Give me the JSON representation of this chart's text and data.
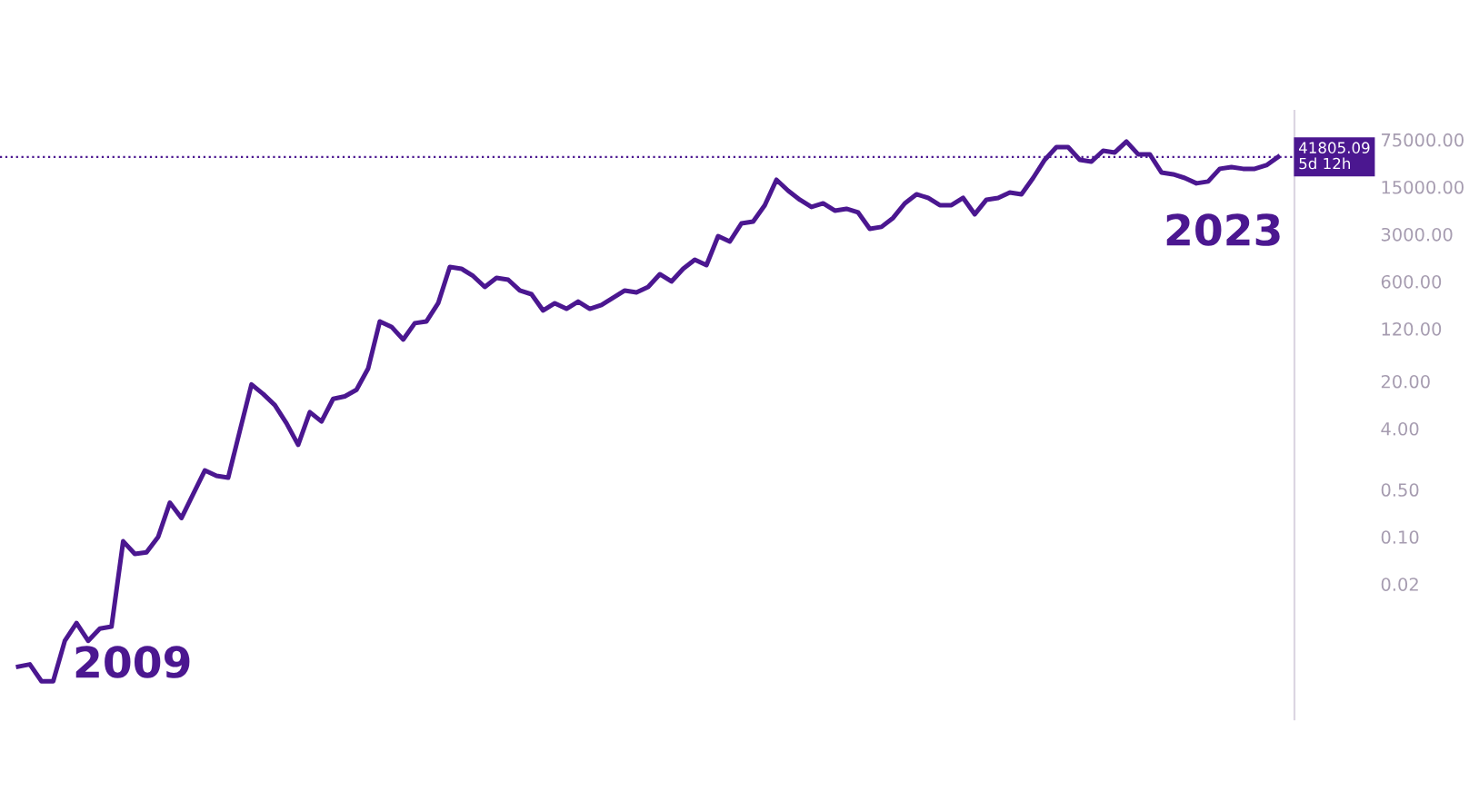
{
  "chart_data": {
    "type": "line",
    "categories": [
      null,
      null,
      null,
      null,
      null,
      null,
      null,
      null,
      null,
      null,
      null,
      null,
      null,
      null,
      null,
      null,
      null,
      null,
      null,
      null,
      null,
      null,
      null,
      null,
      null,
      null,
      null,
      null,
      null,
      null,
      null,
      null,
      null,
      null,
      null,
      null,
      null,
      null,
      null,
      null,
      null,
      null,
      null,
      null,
      null,
      null,
      null,
      null,
      null,
      null,
      null,
      null,
      null,
      null,
      null,
      null,
      null,
      null,
      null,
      null,
      null,
      null,
      null,
      null,
      null,
      null,
      null,
      null,
      null,
      null,
      null,
      null,
      null,
      null,
      null,
      null,
      null,
      null,
      null,
      null,
      null,
      null,
      null,
      null,
      null,
      null,
      null,
      null,
      null,
      null,
      null,
      null,
      null,
      null,
      null,
      null,
      null,
      null,
      null,
      null,
      null,
      null,
      null,
      null,
      null,
      null,
      null,
      null,
      null
    ],
    "series": [
      {
        "color": "#4b1790",
        "values": [
          0.0012,
          0.0013,
          0.00073,
          0.00073,
          0.0029,
          0.0053,
          0.0029,
          0.0044,
          0.0047,
          0.086,
          0.056,
          0.059,
          0.1,
          0.32,
          0.19,
          0.43,
          0.96,
          0.8,
          0.75,
          3.7,
          18,
          13,
          8.9,
          4.8,
          2.3,
          7.0,
          5.1,
          11,
          12,
          15,
          31,
          154,
          128,
          83,
          145,
          154,
          286,
          984,
          925,
          723,
          498,
          679,
          638,
          441,
          389,
          223,
          286,
          237,
          303,
          237,
          269,
          344,
          441,
          414,
          498,
          769,
          600,
          925,
          1262,
          1047,
          2818,
          2339,
          4345,
          4624,
          8070,
          19190,
          13240,
          9730,
          7590,
          8590,
          6700,
          7130,
          6310,
          3610,
          3850,
          5240,
          8590,
          11700,
          10350,
          8070,
          8070,
          10350,
          5930,
          9730,
          10350,
          12450,
          11700,
          20400,
          37900,
          58500,
          58500,
          37900,
          35600,
          51600,
          48600,
          70500,
          45700,
          45700,
          24600,
          23100,
          20400,
          17000,
          18100,
          27900,
          29600,
          27900,
          27900,
          31500,
          41805.09
        ]
      }
    ],
    "log": "y",
    "ylim": [
      0.0002,
      200000
    ],
    "yticks": [
      {
        "value": 0.02,
        "label": "0.02"
      },
      {
        "value": 0.1,
        "label": "0.10"
      },
      {
        "value": 0.5,
        "label": "0.50"
      },
      {
        "value": 4,
        "label": "4.00"
      },
      {
        "value": 20,
        "label": "20.00"
      },
      {
        "value": 120,
        "label": "120.00"
      },
      {
        "value": 600,
        "label": "600.00"
      },
      {
        "value": 3000,
        "label": "3000.00"
      },
      {
        "value": 15000,
        "label": "15000.00"
      },
      {
        "value": 75000,
        "label": "75000.00"
      }
    ],
    "tick_labels": "y",
    "grid": false,
    "marker": "none",
    "line_style": "solid",
    "ref_lines": [
      {
        "axis": "y",
        "value": 41805.09,
        "label": "41805.09\n5d 12h",
        "color": "#4b1790",
        "line_style": "dotted"
      }
    ],
    "annotations": [
      "2009",
      "2023"
    ]
  }
}
